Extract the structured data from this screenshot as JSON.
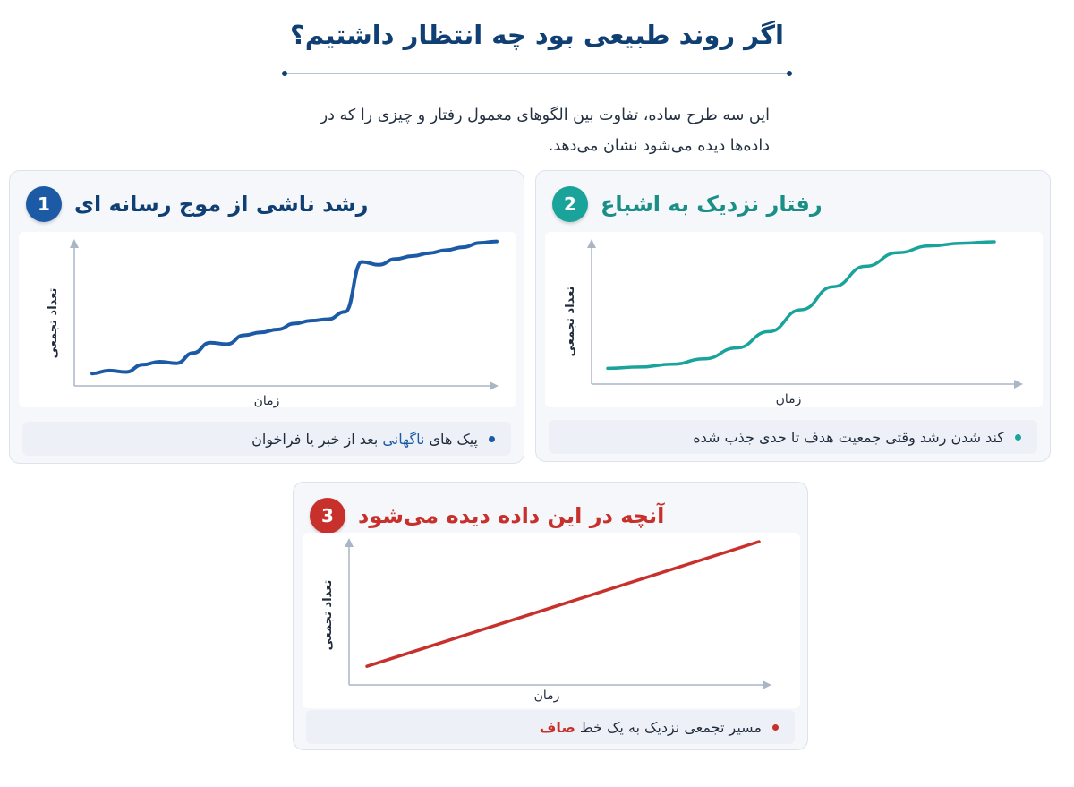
{
  "header": {
    "title": "اگر روند طبیعی بود چه انتظار داشتیم؟",
    "intro": "این سه طرح ساده، تفاوت بین الگوهای معمول رفتار و چیزی را که در داده‌ها دیده می‌شود نشان می‌دهد."
  },
  "colors": {
    "navy": "#0f3f73",
    "blue": "#1c5aa6",
    "teal": "#1aa39a",
    "red": "#c8302c",
    "axis": "#aab6c6"
  },
  "panels": [
    {
      "number": "1",
      "title": "رشد ناشی از موج رسانه ای",
      "ylabel": "تعداد تجمعی",
      "xlabel": "زمان",
      "caption_pre": "پیک های ",
      "caption_highlight": "ناگهانی",
      "caption_post": " بعد از خبر یا فراخوان",
      "accent": "#1c5aa6"
    },
    {
      "number": "2",
      "title": "رفتار نزدیک به اشباع",
      "ylabel": "تعداد تجمعی",
      "xlabel": "زمان",
      "caption": "کند شدن رشد وقتی جمعیت هدف تا حدی جذب شده",
      "accent": "#1aa39a"
    },
    {
      "number": "3",
      "title": "آنچه در این داده دیده می‌شود",
      "ylabel": "تعداد تجمعی",
      "xlabel": "زمان",
      "caption_pre": "مسیر تجمعی نزدیک به یک خط ",
      "caption_highlight": "صاف",
      "accent": "#c8302c"
    }
  ],
  "chart_data": [
    {
      "type": "line",
      "title": "رشد ناشی از موج رسانه ای",
      "xlabel": "زمان",
      "ylabel": "تعداد تجمعی",
      "shape": "wavy upward trend with two sudden jumps",
      "series": [
        {
          "values": [
            0.06,
            0.08,
            0.07,
            0.12,
            0.14,
            0.13,
            0.2,
            0.27,
            0.26,
            0.32,
            0.34,
            0.36,
            0.4,
            0.42,
            0.43,
            0.48,
            0.82,
            0.8,
            0.84,
            0.86,
            0.88,
            0.9,
            0.92,
            0.95,
            0.96
          ]
        }
      ]
    },
    {
      "type": "line",
      "title": "رفتار نزدیک به اشباع",
      "xlabel": "زمان",
      "ylabel": "تعداد تجمعی",
      "shape": "S-curve approaching saturation",
      "series": [
        {
          "values": [
            0.05,
            0.06,
            0.08,
            0.12,
            0.2,
            0.32,
            0.48,
            0.65,
            0.8,
            0.9,
            0.95,
            0.97,
            0.98
          ]
        }
      ]
    },
    {
      "type": "line",
      "title": "آنچه در این داده دیده می‌شود",
      "xlabel": "زمان",
      "ylabel": "تعداد تجمعی",
      "shape": "straight line",
      "series": [
        {
          "values": [
            0.08,
            0.95
          ]
        }
      ]
    }
  ]
}
